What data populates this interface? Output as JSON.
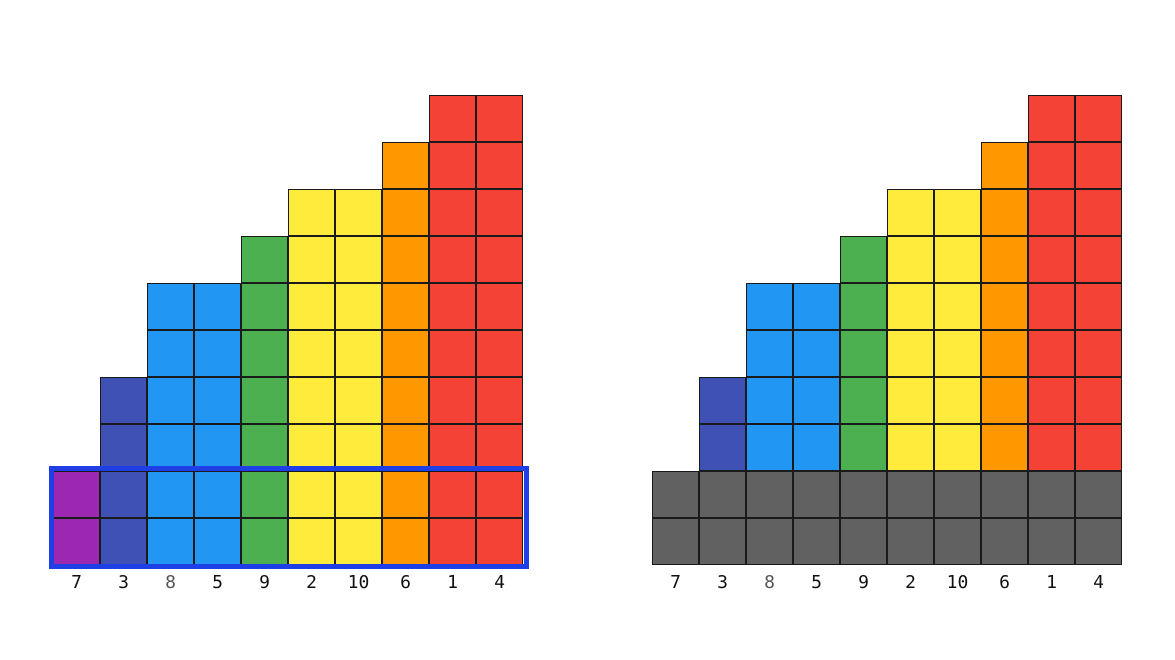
{
  "colors": {
    "purple": "#9c27b0",
    "indigo": "#3f51b5",
    "blue": "#2196f3",
    "green": "#4caf50",
    "yellow": "#ffeb3b",
    "orange": "#ff9800",
    "red": "#f44336",
    "gray": "#616161",
    "highlight": "#1f3fe6"
  },
  "left_panel": {
    "columns": [
      {
        "label": "7",
        "height": 2,
        "color": "purple"
      },
      {
        "label": "3",
        "height": 4,
        "color": "indigo"
      },
      {
        "label": "8",
        "height": 6,
        "color": "blue",
        "label_dim": true
      },
      {
        "label": "5",
        "height": 6,
        "color": "blue"
      },
      {
        "label": "9",
        "height": 7,
        "color": "green"
      },
      {
        "label": "2",
        "height": 8,
        "color": "yellow"
      },
      {
        "label": "10",
        "height": 8,
        "color": "yellow"
      },
      {
        "label": "6",
        "height": 9,
        "color": "orange"
      },
      {
        "label": "1",
        "height": 10,
        "color": "red"
      },
      {
        "label": "4",
        "height": 10,
        "color": "red"
      }
    ],
    "highlighted_rows": 2
  },
  "right_panel": {
    "columns": [
      {
        "label": "7",
        "height": 0,
        "color": "purple"
      },
      {
        "label": "3",
        "height": 2,
        "color": "indigo"
      },
      {
        "label": "8",
        "height": 4,
        "color": "blue",
        "label_dim": true
      },
      {
        "label": "5",
        "height": 4,
        "color": "blue"
      },
      {
        "label": "9",
        "height": 5,
        "color": "green"
      },
      {
        "label": "2",
        "height": 6,
        "color": "yellow"
      },
      {
        "label": "10",
        "height": 6,
        "color": "yellow"
      },
      {
        "label": "6",
        "height": 7,
        "color": "orange"
      },
      {
        "label": "1",
        "height": 8,
        "color": "red"
      },
      {
        "label": "4",
        "height": 8,
        "color": "red"
      }
    ],
    "gray_base_rows": 2
  }
}
